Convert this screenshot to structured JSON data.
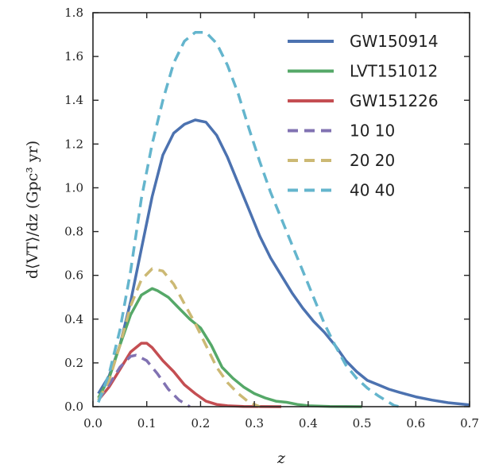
{
  "chart_data": {
    "type": "line",
    "title": "",
    "xlabel": "z",
    "ylabel": "d⟨VT⟩/dz (Gpc³ yr)",
    "xlim": [
      0.0,
      0.7
    ],
    "ylim": [
      0.0,
      1.8
    ],
    "xticks": [
      0.0,
      0.1,
      0.2,
      0.3,
      0.4,
      0.5,
      0.6,
      0.7
    ],
    "xtick_labels": [
      "0.0",
      "0.1",
      "0.2",
      "0.3",
      "0.4",
      "0.5",
      "0.6",
      "0.7"
    ],
    "yticks": [
      0.0,
      0.2,
      0.4,
      0.6,
      0.8,
      1.0,
      1.2,
      1.4,
      1.6,
      1.8
    ],
    "ytick_labels": [
      "0.0",
      "0.2",
      "0.4",
      "0.6",
      "0.8",
      "1.0",
      "1.2",
      "1.4",
      "1.6",
      "1.8"
    ],
    "grid": false,
    "legend_position": "top-right",
    "series": [
      {
        "name": "GW150914",
        "color": "#4c72b0",
        "style": "solid",
        "x": [
          0.01,
          0.03,
          0.05,
          0.07,
          0.09,
          0.11,
          0.13,
          0.15,
          0.17,
          0.19,
          0.21,
          0.23,
          0.25,
          0.27,
          0.29,
          0.31,
          0.33,
          0.35,
          0.37,
          0.39,
          0.41,
          0.43,
          0.45,
          0.47,
          0.49,
          0.51,
          0.53,
          0.55,
          0.57,
          0.6,
          0.63,
          0.66,
          0.7
        ],
        "y": [
          0.06,
          0.14,
          0.28,
          0.48,
          0.72,
          0.96,
          1.15,
          1.25,
          1.29,
          1.31,
          1.3,
          1.24,
          1.14,
          1.02,
          0.9,
          0.78,
          0.68,
          0.6,
          0.52,
          0.45,
          0.39,
          0.34,
          0.28,
          0.21,
          0.16,
          0.12,
          0.1,
          0.08,
          0.065,
          0.045,
          0.03,
          0.018,
          0.008
        ]
      },
      {
        "name": "LVT151012",
        "color": "#55a868",
        "style": "solid",
        "x": [
          0.01,
          0.03,
          0.05,
          0.07,
          0.09,
          0.11,
          0.12,
          0.14,
          0.16,
          0.18,
          0.2,
          0.22,
          0.24,
          0.26,
          0.28,
          0.3,
          0.32,
          0.34,
          0.36,
          0.38,
          0.4,
          0.44,
          0.5
        ],
        "y": [
          0.04,
          0.13,
          0.28,
          0.42,
          0.51,
          0.54,
          0.53,
          0.5,
          0.45,
          0.4,
          0.36,
          0.28,
          0.18,
          0.13,
          0.09,
          0.06,
          0.04,
          0.025,
          0.02,
          0.01,
          0.004,
          0.001,
          0.0
        ]
      },
      {
        "name": "GW151226",
        "color": "#c44e52",
        "style": "solid",
        "x": [
          0.01,
          0.03,
          0.05,
          0.07,
          0.09,
          0.1,
          0.11,
          0.13,
          0.15,
          0.17,
          0.19,
          0.21,
          0.23,
          0.25,
          0.28,
          0.35
        ],
        "y": [
          0.03,
          0.09,
          0.17,
          0.25,
          0.29,
          0.29,
          0.27,
          0.21,
          0.16,
          0.1,
          0.06,
          0.025,
          0.01,
          0.004,
          0.001,
          0.0
        ]
      },
      {
        "name": "10 10",
        "color": "#8172b2",
        "style": "dashed",
        "x": [
          0.01,
          0.03,
          0.05,
          0.07,
          0.08,
          0.1,
          0.12,
          0.14,
          0.16,
          0.18
        ],
        "y": [
          0.03,
          0.1,
          0.18,
          0.23,
          0.235,
          0.21,
          0.15,
          0.08,
          0.03,
          0.0
        ]
      },
      {
        "name": "20 20",
        "color": "#ccb974",
        "style": "dashed",
        "x": [
          0.01,
          0.03,
          0.05,
          0.07,
          0.09,
          0.11,
          0.13,
          0.15,
          0.17,
          0.19,
          0.21,
          0.23,
          0.25,
          0.27,
          0.29,
          0.31
        ],
        "y": [
          0.03,
          0.12,
          0.28,
          0.46,
          0.58,
          0.63,
          0.62,
          0.56,
          0.47,
          0.38,
          0.28,
          0.18,
          0.11,
          0.06,
          0.02,
          0.0
        ]
      },
      {
        "name": "40 40",
        "color": "#64b5cd",
        "style": "dashed",
        "x": [
          0.01,
          0.03,
          0.05,
          0.07,
          0.09,
          0.11,
          0.13,
          0.15,
          0.17,
          0.19,
          0.21,
          0.23,
          0.25,
          0.27,
          0.29,
          0.31,
          0.33,
          0.35,
          0.37,
          0.39,
          0.41,
          0.43,
          0.45,
          0.47,
          0.49,
          0.51,
          0.53,
          0.55,
          0.56,
          0.57
        ],
        "y": [
          0.02,
          0.15,
          0.35,
          0.62,
          0.95,
          1.2,
          1.4,
          1.57,
          1.67,
          1.71,
          1.71,
          1.66,
          1.56,
          1.43,
          1.27,
          1.12,
          0.98,
          0.86,
          0.74,
          0.62,
          0.5,
          0.38,
          0.28,
          0.19,
          0.13,
          0.085,
          0.05,
          0.02,
          0.005,
          0.0
        ]
      }
    ]
  }
}
